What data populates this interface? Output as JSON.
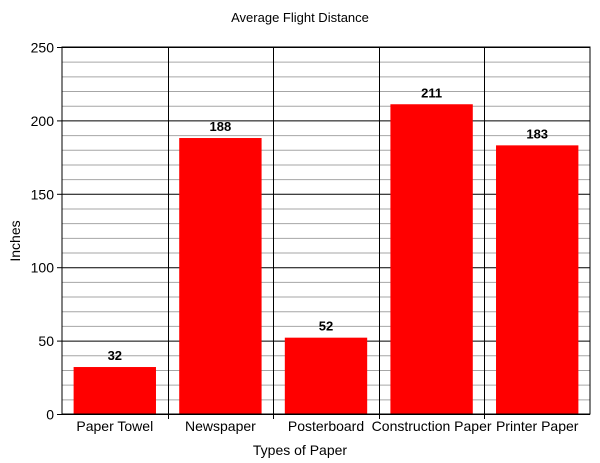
{
  "chart_data": {
    "type": "bar",
    "title": "Average Flight Distance",
    "xlabel": "Types of Paper",
    "ylabel": "Inches",
    "categories": [
      "Paper Towel",
      "Newspaper",
      "Posterboard",
      "Construction Paper",
      "Printer Paper"
    ],
    "values": [
      32,
      188,
      52,
      211,
      183
    ],
    "data_labels": [
      "32",
      "188",
      "52",
      "211",
      "183"
    ],
    "ylim": [
      0,
      250
    ],
    "y_ticks": [
      0,
      50,
      100,
      150,
      200,
      250
    ],
    "y_minor_step": 10,
    "grid": true,
    "legend": "none",
    "bar_color": "#ff0000"
  }
}
